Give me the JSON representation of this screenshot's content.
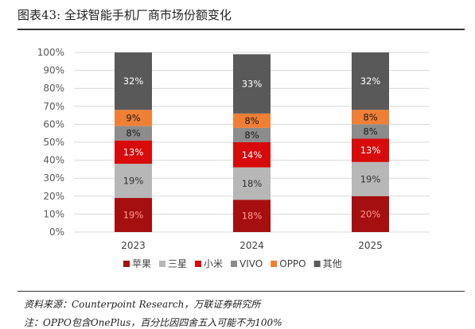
{
  "figure": {
    "title": "图表43:  全球智能手机厂商市场份额变化",
    "source": "资料来源：Counterpoint Research，万联证券研究所",
    "note": "注：OPPO包含OnePlus，百分比因四舍五入可能不为100%"
  },
  "chart_data": {
    "type": "bar",
    "stacked": true,
    "title": "",
    "xlabel": "",
    "ylabel": "",
    "ylim": [
      0,
      100
    ],
    "yticks": [
      "0%",
      "10%",
      "20%",
      "30%",
      "40%",
      "50%",
      "60%",
      "70%",
      "80%",
      "90%",
      "100%"
    ],
    "grid": true,
    "legend_position": "bottom",
    "categories": [
      "2023",
      "2024",
      "2025"
    ],
    "series": [
      {
        "name": "苹果",
        "color": "#a50f0f",
        "label_color": "#ff9999",
        "values": [
          19,
          18,
          20
        ],
        "labels": [
          "19%",
          "18%",
          "20%"
        ]
      },
      {
        "name": "三星",
        "color": "#b7b7b7",
        "label_color": "#333333",
        "values": [
          19,
          18,
          19
        ],
        "labels": [
          "19%",
          "18%",
          "19%"
        ]
      },
      {
        "name": "小米",
        "color": "#d70b0b",
        "label_color": "#ffffff",
        "values": [
          13,
          14,
          13
        ],
        "labels": [
          "13%",
          "14%",
          "13%"
        ]
      },
      {
        "name": "VIVO",
        "color": "#8c8c8c",
        "label_color": "#1a1a1a",
        "values": [
          8,
          8,
          8
        ],
        "labels": [
          "8%",
          "8%",
          "8%"
        ]
      },
      {
        "name": "OPPO",
        "color": "#f07f36",
        "label_color": "#1a1a1a",
        "values": [
          9,
          8,
          8
        ],
        "labels": [
          "9%",
          "8%",
          "8%"
        ]
      },
      {
        "name": "其他",
        "color": "#595959",
        "label_color": "#ffffff",
        "values": [
          32,
          33,
          32
        ],
        "labels": [
          "32%",
          "33%",
          "32%"
        ]
      }
    ]
  }
}
